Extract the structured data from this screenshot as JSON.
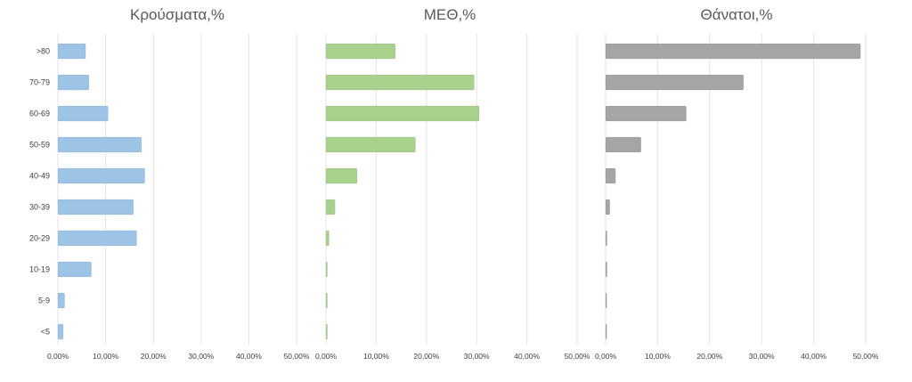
{
  "categories": [
    ">80",
    "70-79",
    "60-69",
    "50-59",
    "40-49",
    "30-39",
    "20-29",
    "10-19",
    "5-9",
    "<5"
  ],
  "chart_data": [
    {
      "type": "bar",
      "orientation": "horizontal",
      "title": "Κρούσματα,%",
      "color": "#9dc3e6",
      "categories": [
        ">80",
        "70-79",
        "60-69",
        "50-59",
        "40-49",
        "30-39",
        "20-29",
        "10-19",
        "5-9",
        "<5"
      ],
      "values": [
        5.8,
        6.5,
        10.5,
        17.5,
        18.2,
        15.8,
        16.5,
        7.0,
        1.4,
        1.1
      ],
      "xlim": [
        0,
        50
      ],
      "xticks": [
        "0,00%",
        "10,00%",
        "20,00%",
        "30,00%",
        "40,00%",
        "50,00%"
      ],
      "grid": true
    },
    {
      "type": "bar",
      "orientation": "horizontal",
      "title": "ΜΕΘ,%",
      "color": "#a9d18e",
      "categories": [
        ">80",
        "70-79",
        "60-69",
        "50-59",
        "40-49",
        "30-39",
        "20-29",
        "10-19",
        "5-9",
        "<5"
      ],
      "values": [
        13.8,
        29.5,
        30.5,
        17.8,
        6.2,
        1.8,
        0.6,
        0.2,
        0.15,
        0.15
      ],
      "xlim": [
        0,
        50
      ],
      "xticks": [
        "0,00%",
        "10,00%",
        "20,00%",
        "30,00%",
        "40,00%",
        "50,00%"
      ],
      "grid": true
    },
    {
      "type": "bar",
      "orientation": "horizontal",
      "title": "Θάνατοι,%",
      "color": "#a5a5a5",
      "categories": [
        ">80",
        "70-79",
        "60-69",
        "50-59",
        "40-49",
        "30-39",
        "20-29",
        "10-19",
        "5-9",
        "<5"
      ],
      "values": [
        49.0,
        26.5,
        15.5,
        6.8,
        1.9,
        0.8,
        0.2,
        0.2,
        0,
        0
      ],
      "xlim": [
        0,
        50
      ],
      "xticks": [
        "0,00%",
        "10,00%",
        "20,00%",
        "30,00%",
        "40,00%",
        "50,00%"
      ],
      "grid": true
    }
  ]
}
